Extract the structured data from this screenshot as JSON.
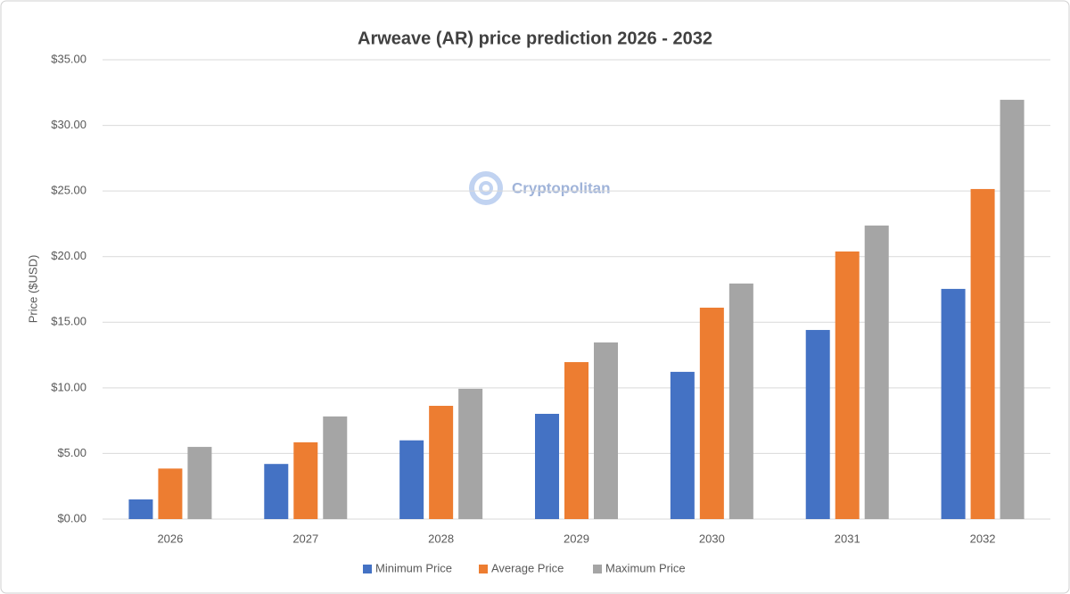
{
  "chart_data": {
    "type": "bar",
    "title": "Arweave (AR) price prediction 2026 - 2032",
    "y_label": "Price ($USD)",
    "watermark": "Cryptopolitan",
    "categories": [
      "2026",
      "2027",
      "2028",
      "2029",
      "2030",
      "2031",
      "2032"
    ],
    "series": [
      {
        "name": "Minimum Price",
        "color": "#4472c4",
        "values": [
          1.5,
          4.2,
          6.0,
          8.02,
          11.22,
          14.41,
          17.54
        ]
      },
      {
        "name": "Average Price",
        "color": "#ed7d31",
        "values": [
          3.85,
          5.85,
          8.63,
          11.96,
          16.11,
          20.39,
          25.15
        ]
      },
      {
        "name": "Maximum Price",
        "color": "#a5a5a5",
        "values": [
          5.5,
          7.82,
          9.93,
          13.46,
          17.95,
          22.37,
          31.95
        ]
      }
    ],
    "ylim": [
      0,
      35
    ],
    "yticks": [
      {
        "value": 0,
        "label": "$0.00"
      },
      {
        "value": 5,
        "label": "$5.00"
      },
      {
        "value": 10,
        "label": "$10.00"
      },
      {
        "value": 15,
        "label": "$15.00"
      },
      {
        "value": 20,
        "label": "$20.00"
      },
      {
        "value": 25,
        "label": "$25.00"
      },
      {
        "value": 30,
        "label": "$30.00"
      },
      {
        "value": 35,
        "label": "$35.00"
      }
    ],
    "grid": true,
    "legend": "bottom"
  }
}
